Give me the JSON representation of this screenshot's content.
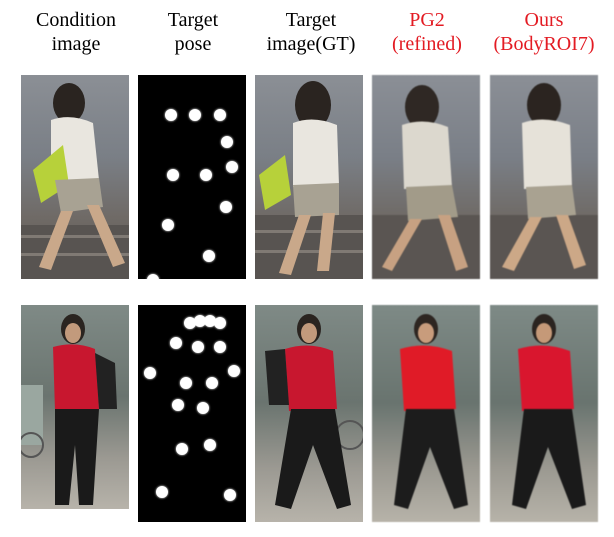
{
  "headers": [
    {
      "line1": "Condition",
      "line2": "image",
      "red": false
    },
    {
      "line1": "Target",
      "line2": "pose",
      "red": false
    },
    {
      "line1": "Target",
      "line2": "image(GT)",
      "red": false
    },
    {
      "line1": "PG2",
      "line2": "(refined)",
      "red": true
    },
    {
      "line1": "Ours",
      "line2": "(BodyROI7)",
      "red": true
    }
  ],
  "colors": {
    "red_header": "#e31b23",
    "pose_background": "#000000",
    "joint": "#ffffff",
    "row1_shirt": "#e9e6df",
    "row1_shorts": "#a8a293",
    "row1_bag": "#b7d13a",
    "row2_shirt": "#c8172f",
    "row2_pants": "#1a1a1a"
  },
  "rows": [
    {
      "id": "row-1",
      "person": "woman-white-top-walking-stairs"
    },
    {
      "id": "row-2",
      "person": "woman-red-shirt-black-pants"
    }
  ]
}
